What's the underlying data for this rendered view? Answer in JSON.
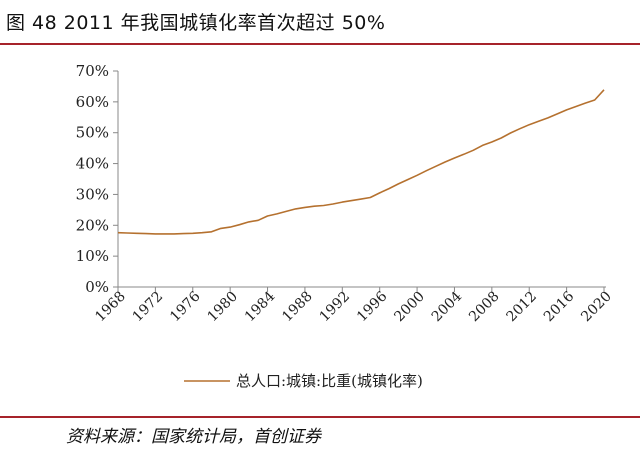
{
  "figure_title": "图 48 2011 年我国城镇化率首次超过 50%",
  "source_note": "资料来源：国家统计局，首创证券",
  "colors": {
    "accent_rule": "#a6232a",
    "series_line": "#b5712f",
    "axis": "#888888"
  },
  "chart_data": {
    "type": "line",
    "title": "",
    "xlabel": "",
    "ylabel": "",
    "xlim": [
      1968,
      2020
    ],
    "ylim": [
      0,
      70
    ],
    "x_ticks": [
      1968,
      1972,
      1976,
      1980,
      1984,
      1988,
      1992,
      1996,
      2000,
      2004,
      2008,
      2012,
      2016,
      2020
    ],
    "x_tick_labels": [
      "1968",
      "1972",
      "1976",
      "1980",
      "1984",
      "1988",
      "1992",
      "1996",
      "2000",
      "2004",
      "2008",
      "2012",
      "2016",
      "2020"
    ],
    "y_ticks": [
      0,
      10,
      20,
      30,
      40,
      50,
      60,
      70
    ],
    "y_tick_labels": [
      "0%",
      "10%",
      "20%",
      "30%",
      "40%",
      "50%",
      "60%",
      "70%"
    ],
    "grid": false,
    "legend_position": "bottom",
    "series": [
      {
        "name": "总人口:城镇:比重(城镇化率)",
        "x": [
          1968,
          1969,
          1970,
          1971,
          1972,
          1973,
          1974,
          1975,
          1976,
          1977,
          1978,
          1979,
          1980,
          1981,
          1982,
          1983,
          1984,
          1985,
          1986,
          1987,
          1988,
          1989,
          1990,
          1991,
          1992,
          1993,
          1994,
          1995,
          1996,
          1997,
          1998,
          1999,
          2000,
          2001,
          2002,
          2003,
          2004,
          2005,
          2006,
          2007,
          2008,
          2009,
          2010,
          2011,
          2012,
          2013,
          2014,
          2015,
          2016,
          2017,
          2018,
          2019,
          2020
        ],
        "values": [
          17.6,
          17.5,
          17.4,
          17.3,
          17.2,
          17.2,
          17.2,
          17.3,
          17.4,
          17.6,
          17.9,
          19.0,
          19.4,
          20.2,
          21.1,
          21.6,
          23.0,
          23.7,
          24.5,
          25.3,
          25.8,
          26.2,
          26.4,
          26.9,
          27.5,
          28.0,
          28.5,
          29.0,
          30.5,
          31.9,
          33.4,
          34.8,
          36.2,
          37.7,
          39.1,
          40.5,
          41.8,
          43.0,
          44.3,
          45.9,
          47.0,
          48.3,
          49.9,
          51.3,
          52.6,
          53.7,
          54.8,
          56.1,
          57.4,
          58.5,
          59.6,
          60.6,
          63.9
        ]
      }
    ]
  }
}
